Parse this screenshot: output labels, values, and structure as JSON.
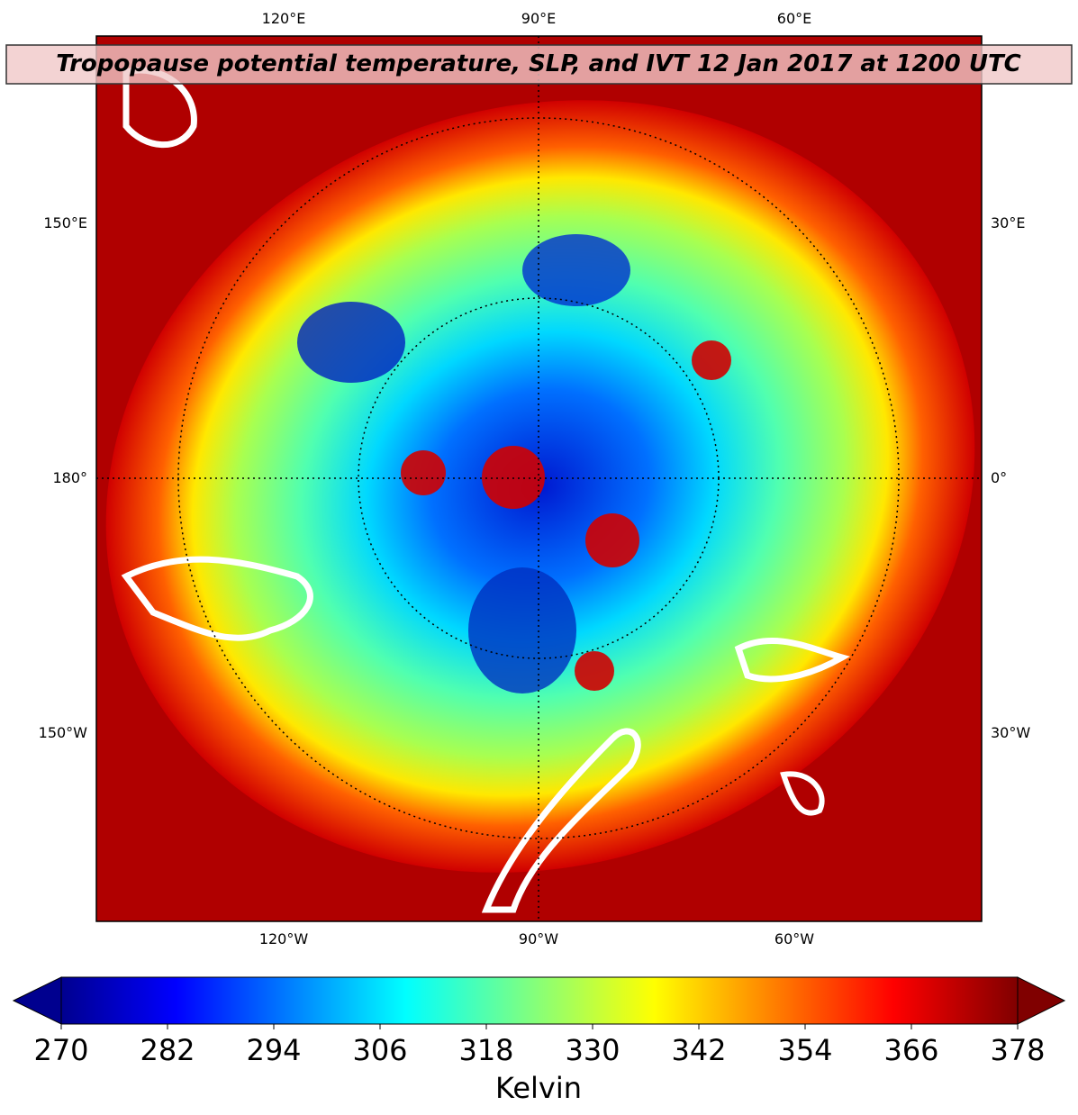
{
  "title": "Tropopause potential temperature, SLP, and IVT 12 Jan 2017 at 1200 UTC",
  "lon_labels": {
    "top": [
      "120°E",
      "90°E",
      "60°E"
    ],
    "left": [
      "150°E",
      "180°",
      "150°W"
    ],
    "right": [
      "30°E",
      "0°",
      "30°W"
    ],
    "bottom": [
      "120°W",
      "90°W",
      "60°W"
    ]
  },
  "colorbar": {
    "label": "Kelvin",
    "lim": [
      270,
      378
    ],
    "ticks": [
      270,
      282,
      294,
      306,
      318,
      330,
      342,
      354,
      366,
      378
    ]
  }
}
